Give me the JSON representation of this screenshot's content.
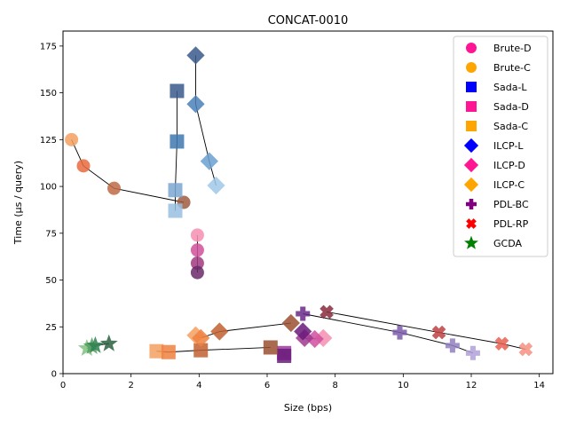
{
  "chart_data": {
    "type": "scatter",
    "title": "CONCAT-0010",
    "xlabel": "Size (bps)",
    "ylabel": "Time (µs / query)",
    "xlim": [
      0,
      14.4
    ],
    "ylim": [
      0,
      183
    ],
    "x_ticks": [
      0,
      2,
      4,
      6,
      8,
      10,
      12,
      14
    ],
    "y_ticks": [
      0,
      25,
      50,
      75,
      100,
      125,
      150,
      175
    ],
    "legend_position": "top-right",
    "series": [
      {
        "name": "Brute-D",
        "marker": "circle",
        "legend_color": "#ff1493",
        "points": [
          [
            3.95,
            74,
            "#f48fb1"
          ],
          [
            3.95,
            66,
            "#d0509a"
          ],
          [
            3.95,
            59,
            "#a03a80"
          ],
          [
            3.95,
            54,
            "#6a2a6a"
          ]
        ]
      },
      {
        "name": "Brute-C",
        "marker": "circle",
        "legend_color": "#ffa500",
        "points": [
          [
            0.25,
            125,
            "#f5a060"
          ],
          [
            0.6,
            111,
            "#e86a3e"
          ],
          [
            1.5,
            99,
            "#bf6a45"
          ],
          [
            3.55,
            91.5,
            "#a05a40"
          ]
        ]
      },
      {
        "name": "Sada-L",
        "marker": "square",
        "legend_color": "#0000ff",
        "points": [
          [
            3.35,
            151,
            "#3a5a8c"
          ],
          [
            3.35,
            124,
            "#3e78b0"
          ],
          [
            3.3,
            98,
            "#7aa8d0"
          ],
          [
            3.3,
            87,
            "#98c0e0"
          ]
        ]
      },
      {
        "name": "Sada-D",
        "marker": "square",
        "legend_color": "#ff1493",
        "points": [
          [
            6.5,
            11,
            "#9a3a9a"
          ],
          [
            6.5,
            9.5,
            "#6a1a7a"
          ]
        ]
      },
      {
        "name": "Sada-C",
        "marker": "square",
        "legend_color": "#ffa500",
        "points": [
          [
            2.75,
            12,
            "#f5a060"
          ],
          [
            3.1,
            11.5,
            "#f08040"
          ],
          [
            4.05,
            12.5,
            "#c06030"
          ],
          [
            6.1,
            14,
            "#9a5030"
          ]
        ]
      },
      {
        "name": "ILCP-L",
        "marker": "diamond",
        "legend_color": "#0000ff",
        "points": [
          [
            3.9,
            170,
            "#3a5a8c"
          ],
          [
            3.9,
            144,
            "#4a80b8"
          ],
          [
            4.3,
            113.5,
            "#6aa0d0"
          ],
          [
            4.5,
            100.5,
            "#a0c8e8"
          ]
        ]
      },
      {
        "name": "ILCP-D",
        "marker": "diamond",
        "legend_color": "#ff1493",
        "points": [
          [
            7.65,
            19,
            "#f48fb1"
          ],
          [
            7.4,
            18.5,
            "#d050a0"
          ],
          [
            7.1,
            19,
            "#a03a90"
          ],
          [
            7.05,
            22.5,
            "#6a1a7a"
          ]
        ]
      },
      {
        "name": "ILCP-C",
        "marker": "diamond",
        "legend_color": "#ffa500",
        "points": [
          [
            3.9,
            20.5,
            "#f5a060"
          ],
          [
            4.05,
            19,
            "#f08040"
          ],
          [
            4.6,
            22.5,
            "#c06030"
          ],
          [
            6.7,
            27,
            "#9a5030"
          ]
        ]
      },
      {
        "name": "PDL-BC",
        "marker": "plus",
        "legend_color": "#800080",
        "points": [
          [
            12.05,
            11,
            "#b0a0d8"
          ],
          [
            11.45,
            15,
            "#9080c0"
          ],
          [
            9.9,
            22,
            "#7a5aaa"
          ],
          [
            7.05,
            32,
            "#6a2a8a"
          ]
        ]
      },
      {
        "name": "PDL-RP",
        "marker": "x",
        "legend_color": "#ff0000",
        "points": [
          [
            13.6,
            13,
            "#f59080"
          ],
          [
            12.9,
            16,
            "#e86050"
          ],
          [
            11.05,
            22,
            "#c04040"
          ],
          [
            7.75,
            33,
            "#8a2a3a"
          ]
        ]
      },
      {
        "name": "GCDA",
        "marker": "star",
        "legend_color": "#008000",
        "points": [
          [
            0.7,
            13.5,
            "#80c080"
          ],
          [
            0.85,
            14.5,
            "#50a060"
          ],
          [
            0.95,
            15,
            "#308050"
          ],
          [
            1.35,
            16,
            "#2a6040"
          ]
        ]
      }
    ]
  }
}
